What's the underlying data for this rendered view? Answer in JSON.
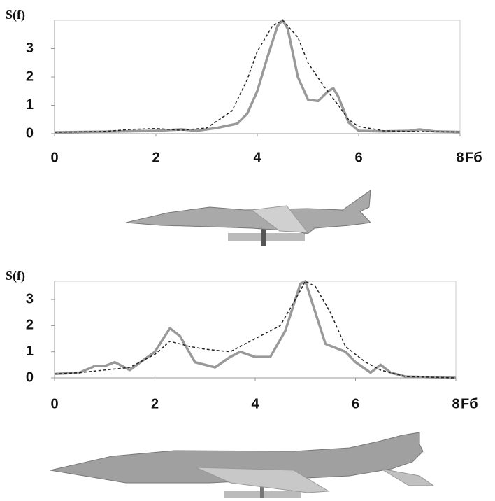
{
  "chart_data": [
    {
      "type": "line",
      "y_label": "S(f)",
      "x_label": "Fб",
      "xlim": [
        0,
        8
      ],
      "ylim": [
        0,
        4
      ],
      "xticks": [
        0,
        2,
        4,
        6,
        8
      ],
      "yticks": [
        0,
        1,
        2,
        3
      ],
      "series": [
        {
          "color": "#999999",
          "style": "solid",
          "x": [
            0,
            1,
            2,
            2.5,
            2.8,
            3.2,
            3.6,
            3.8,
            4.0,
            4.2,
            4.4,
            4.5,
            4.6,
            4.8,
            5.0,
            5.2,
            5.4,
            5.5,
            5.6,
            5.8,
            6.0,
            6.5,
            7,
            7.2,
            7.5,
            8
          ],
          "values": [
            0.05,
            0.07,
            0.1,
            0.15,
            0.1,
            0.2,
            0.35,
            0.7,
            1.5,
            2.7,
            3.8,
            4.0,
            3.7,
            2.0,
            1.2,
            1.15,
            1.5,
            1.6,
            1.3,
            0.4,
            0.1,
            0.08,
            0.1,
            0.15,
            0.08,
            0.06
          ]
        },
        {
          "color": "#222222",
          "style": "dashed",
          "x": [
            0,
            1,
            1.5,
            2,
            2.5,
            3,
            3.5,
            3.8,
            4.0,
            4.3,
            4.5,
            4.8,
            5.0,
            5.3,
            5.6,
            5.8,
            6.0,
            6.5,
            7,
            8
          ],
          "values": [
            0.05,
            0.08,
            0.15,
            0.18,
            0.12,
            0.2,
            0.8,
            1.9,
            2.9,
            3.8,
            4.0,
            3.4,
            2.5,
            1.7,
            1.0,
            0.5,
            0.25,
            0.1,
            0.08,
            0.06
          ]
        }
      ]
    },
    {
      "type": "line",
      "y_label": "S(f)",
      "x_label": "Fб",
      "xlim": [
        0,
        8
      ],
      "ylim": [
        0,
        3.7
      ],
      "xticks": [
        0,
        2,
        4,
        6,
        8
      ],
      "yticks": [
        0,
        1,
        2,
        3
      ],
      "series": [
        {
          "color": "#999999",
          "style": "solid",
          "x": [
            0,
            0.5,
            0.8,
            1.0,
            1.2,
            1.5,
            2.0,
            2.3,
            2.5,
            2.8,
            3.2,
            3.5,
            3.7,
            4.0,
            4.3,
            4.6,
            4.9,
            5.0,
            5.2,
            5.4,
            5.8,
            6.0,
            6.3,
            6.5,
            6.7,
            7,
            8
          ],
          "values": [
            0.15,
            0.2,
            0.45,
            0.45,
            0.6,
            0.3,
            1.0,
            1.9,
            1.6,
            0.6,
            0.4,
            0.8,
            1.0,
            0.8,
            0.8,
            1.8,
            3.6,
            3.7,
            2.5,
            1.3,
            1.0,
            0.6,
            0.2,
            0.5,
            0.2,
            0.05,
            0
          ]
        },
        {
          "color": "#222222",
          "style": "dashed",
          "x": [
            0,
            0.5,
            1,
            1.5,
            2,
            2.3,
            2.7,
            3,
            3.5,
            4,
            4.5,
            4.8,
            5.0,
            5.2,
            5.5,
            5.8,
            6.2,
            6.5,
            7,
            8
          ],
          "values": [
            0.15,
            0.2,
            0.3,
            0.4,
            0.9,
            1.4,
            1.2,
            1.1,
            1.0,
            1.5,
            2.0,
            3.0,
            3.7,
            3.5,
            2.5,
            1.2,
            0.6,
            0.3,
            0.05,
            0
          ]
        }
      ]
    }
  ]
}
